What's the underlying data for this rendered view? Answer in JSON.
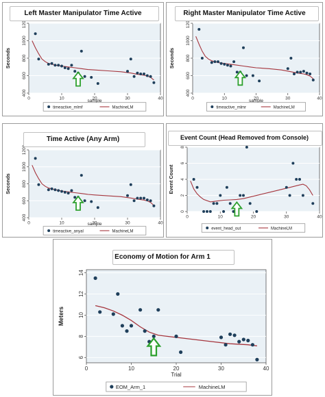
{
  "colors": {
    "points": "#1f3f5b",
    "fit_line": "#a5343c",
    "arrow": "#2ca02c",
    "plot_bg": "#eaf1f6"
  },
  "chart_data": [
    {
      "type": "scatter",
      "title": "Left Master Manipulator Time Active",
      "xlabel": "sample",
      "ylabel": "Seconds",
      "xlim": [
        0,
        40
      ],
      "ylim": [
        400,
        1200
      ],
      "xticks": [
        "0",
        "10",
        "20",
        "30",
        "40"
      ],
      "yticks": [
        "400",
        "600",
        "800",
        "1000",
        "1200"
      ],
      "legend": [
        "timeactive_mlmf",
        "MachineLM"
      ],
      "series": [
        {
          "type": "scatter",
          "x": [
            2,
            3,
            6,
            7,
            8,
            9,
            10,
            11,
            12,
            13,
            14,
            15,
            16,
            17,
            19,
            21,
            30,
            31,
            32,
            33,
            34,
            35,
            36,
            37,
            38
          ],
          "y": [
            1080,
            790,
            730,
            740,
            720,
            720,
            710,
            690,
            680,
            720,
            650,
            630,
            880,
            590,
            580,
            510,
            650,
            790,
            590,
            630,
            620,
            620,
            600,
            590,
            520
          ]
        },
        {
          "type": "line",
          "x": [
            1,
            2,
            3,
            4,
            5,
            6,
            7,
            8,
            10,
            12,
            14,
            16,
            18,
            20,
            24,
            28,
            31,
            33,
            35,
            36,
            37,
            38
          ],
          "y": [
            1000,
            920,
            850,
            790,
            760,
            740,
            730,
            720,
            710,
            700,
            690,
            680,
            670,
            665,
            655,
            645,
            630,
            615,
            605,
            595,
            580,
            550
          ]
        }
      ],
      "arrow_at": {
        "x": 15,
        "y": 560
      }
    },
    {
      "type": "scatter",
      "title": "Right Master Manipulator Time Active",
      "xlabel": "sample",
      "ylabel": "Seconds",
      "xlim": [
        0,
        40
      ],
      "ylim": [
        400,
        1200
      ],
      "xticks": [
        "0",
        "10",
        "20",
        "30",
        "40"
      ],
      "yticks": [
        "400",
        "600",
        "800",
        "1000",
        "1200"
      ],
      "legend": [
        "timeactive_mlmr",
        "MachineLM"
      ],
      "series": [
        {
          "type": "scatter",
          "x": [
            2,
            3,
            6,
            7,
            8,
            9,
            10,
            11,
            12,
            13,
            14,
            15,
            16,
            17,
            19,
            21,
            30,
            31,
            32,
            33,
            34,
            35,
            36,
            37,
            38
          ],
          "y": [
            1130,
            800,
            750,
            760,
            760,
            740,
            730,
            720,
            710,
            760,
            640,
            640,
            920,
            600,
            600,
            540,
            680,
            800,
            620,
            640,
            640,
            650,
            630,
            620,
            550
          ]
        },
        {
          "type": "line",
          "x": [
            1,
            2,
            3,
            4,
            5,
            6,
            7,
            8,
            10,
            12,
            14,
            16,
            18,
            20,
            24,
            28,
            31,
            33,
            35,
            36,
            37,
            38
          ],
          "y": [
            1050,
            960,
            880,
            820,
            790,
            770,
            760,
            750,
            740,
            730,
            720,
            710,
            700,
            690,
            680,
            665,
            645,
            630,
            620,
            610,
            595,
            565
          ]
        }
      ],
      "arrow_at": {
        "x": 15,
        "y": 570
      }
    },
    {
      "type": "scatter",
      "title": "Time Active (Any Arm)",
      "xlabel": "sample",
      "ylabel": "Seconds",
      "xlim": [
        0,
        40
      ],
      "ylim": [
        400,
        1200
      ],
      "xticks": [
        "0",
        "10",
        "20",
        "30",
        "40"
      ],
      "yticks": [
        "400",
        "600",
        "800",
        "1000",
        "1200"
      ],
      "legend": [
        "timeactive_anyal",
        "MachineLM"
      ],
      "series": [
        {
          "type": "scatter",
          "x": [
            2,
            3,
            6,
            7,
            8,
            9,
            10,
            11,
            12,
            13,
            14,
            15,
            16,
            17,
            19,
            21,
            30,
            31,
            32,
            33,
            34,
            35,
            36,
            37,
            38
          ],
          "y": [
            1100,
            790,
            730,
            740,
            730,
            720,
            710,
            700,
            690,
            720,
            640,
            640,
            900,
            600,
            590,
            520,
            660,
            790,
            600,
            630,
            630,
            630,
            610,
            600,
            540
          ]
        },
        {
          "type": "line",
          "x": [
            1,
            2,
            3,
            4,
            5,
            6,
            7,
            8,
            10,
            12,
            14,
            16,
            18,
            20,
            24,
            28,
            31,
            33,
            35,
            36,
            37,
            38
          ],
          "y": [
            1020,
            930,
            860,
            800,
            770,
            750,
            740,
            730,
            715,
            705,
            695,
            685,
            675,
            668,
            658,
            648,
            632,
            618,
            608,
            598,
            580,
            545
          ]
        }
      ],
      "arrow_at": {
        "x": 15,
        "y": 570
      }
    },
    {
      "type": "scatter",
      "title": "Event Count (Head Removed from Console)",
      "xlabel": "",
      "ylabel": "Event Count",
      "xlim": [
        0,
        40
      ],
      "ylim": [
        0,
        8
      ],
      "xticks": [
        "0",
        "10",
        "20",
        "30",
        "40"
      ],
      "yticks": [
        "0",
        "2",
        "4",
        "6",
        "8"
      ],
      "legend": [
        "event_head_out",
        "MachineLM"
      ],
      "series": [
        {
          "type": "scatter",
          "x": [
            2,
            3,
            5,
            6,
            7,
            8,
            9,
            10,
            11,
            12,
            13,
            14,
            15,
            16,
            17,
            18,
            19,
            21,
            30,
            31,
            32,
            33,
            34,
            35,
            38
          ],
          "y": [
            4,
            3,
            0,
            0,
            0,
            1,
            1,
            2,
            0,
            3,
            1,
            0,
            0,
            2,
            2,
            8,
            1,
            0,
            3,
            2,
            6,
            4,
            4,
            2,
            1
          ]
        },
        {
          "type": "line",
          "x": [
            1,
            2,
            3,
            4,
            5,
            7,
            9,
            11,
            13,
            15,
            17,
            19,
            22,
            25,
            28,
            31,
            34,
            35,
            36,
            37,
            38
          ],
          "y": [
            3.8,
            2.8,
            2.2,
            1.8,
            1.5,
            1.2,
            1.3,
            1.4,
            1.45,
            1.5,
            1.6,
            1.8,
            2.1,
            2.4,
            2.7,
            3.0,
            3.3,
            3.4,
            3.2,
            2.7,
            2.0
          ]
        }
      ],
      "arrow_at": {
        "x": 15,
        "y": 0.3
      }
    },
    {
      "type": "scatter",
      "title": "Economy of Motion for Arm 1",
      "xlabel": "Trial",
      "ylabel": "Meters",
      "xlim": [
        0,
        40
      ],
      "ylim": [
        5.5,
        14.3
      ],
      "xticks": [
        "0",
        "10",
        "20",
        "30",
        "40"
      ],
      "yticks": [
        "6",
        "8",
        "10",
        "12",
        "14"
      ],
      "legend": [
        "EOM_Arm_1",
        "MachineLM"
      ],
      "series": [
        {
          "type": "scatter",
          "x": [
            2,
            3,
            6,
            7,
            8,
            9,
            10,
            12,
            13,
            14,
            15,
            16,
            20,
            21,
            30,
            31,
            32,
            33,
            34,
            35,
            36,
            37,
            38
          ],
          "y": [
            13.5,
            10.3,
            10.1,
            12.0,
            9.0,
            8.5,
            9.0,
            10.5,
            8.5,
            7.5,
            8.0,
            10.5,
            8.0,
            6.5,
            7.9,
            7.2,
            8.2,
            8.1,
            7.5,
            7.7,
            7.6,
            7.2,
            5.8
          ]
        },
        {
          "type": "line",
          "x": [
            2,
            4,
            6,
            8,
            10,
            12,
            14,
            16,
            18,
            20,
            24,
            28,
            32,
            36,
            38
          ],
          "y": [
            10.9,
            10.7,
            10.4,
            10.0,
            9.5,
            8.9,
            8.4,
            8.1,
            8.0,
            7.9,
            7.7,
            7.5,
            7.3,
            7.2,
            7.1
          ]
        }
      ],
      "arrow_at": {
        "x": 15,
        "y": 7.0
      }
    }
  ]
}
